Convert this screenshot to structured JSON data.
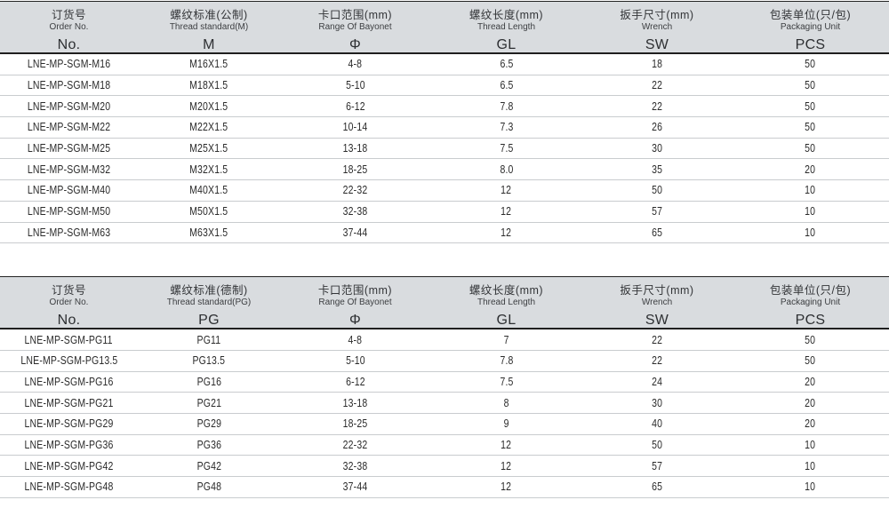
{
  "colors": {
    "header_bg": "#d9dcdf",
    "border_dark": "#1f1f1f",
    "row_line": "#c9cccf",
    "text_dark": "#2b2b2b"
  },
  "tables": [
    {
      "name": "metric-thread-table",
      "columns": [
        {
          "zh": "订货号",
          "en": "Order No.",
          "symbol": "No."
        },
        {
          "zh": "螺纹标准(公制)",
          "en": "Thread standard(M)",
          "symbol": "M"
        },
        {
          "zh": "卡口范围(mm)",
          "en": "Range Of Bayonet",
          "symbol": "Φ"
        },
        {
          "zh": "螺纹长度(mm)",
          "en": "Thread Length",
          "symbol": "GL"
        },
        {
          "zh": "扳手尺寸(mm)",
          "en": "Wrench",
          "symbol": "SW"
        },
        {
          "zh": "包装单位(只/包)",
          "en": "Packaging Unit",
          "symbol": "PCS"
        }
      ],
      "rows": [
        [
          "LNE-MP-SGM-M16",
          "M16X1.5",
          "4-8",
          "6.5",
          "18",
          "50"
        ],
        [
          "LNE-MP-SGM-M18",
          "M18X1.5",
          "5-10",
          "6.5",
          "22",
          "50"
        ],
        [
          "LNE-MP-SGM-M20",
          "M20X1.5",
          "6-12",
          "7.8",
          "22",
          "50"
        ],
        [
          "LNE-MP-SGM-M22",
          "M22X1.5",
          "10-14",
          "7.3",
          "26",
          "50"
        ],
        [
          "LNE-MP-SGM-M25",
          "M25X1.5",
          "13-18",
          "7.5",
          "30",
          "50"
        ],
        [
          "LNE-MP-SGM-M32",
          "M32X1.5",
          "18-25",
          "8.0",
          "35",
          "20"
        ],
        [
          "LNE-MP-SGM-M40",
          "M40X1.5",
          "22-32",
          "12",
          "50",
          "10"
        ],
        [
          "LNE-MP-SGM-M50",
          "M50X1.5",
          "32-38",
          "12",
          "57",
          "10"
        ],
        [
          "LNE-MP-SGM-M63",
          "M63X1.5",
          "37-44",
          "12",
          "65",
          "10"
        ]
      ]
    },
    {
      "name": "pg-thread-table",
      "columns": [
        {
          "zh": "订货号",
          "en": "Order No.",
          "symbol": "No."
        },
        {
          "zh": "螺纹标准(德制)",
          "en": "Thread standard(PG)",
          "symbol": "PG"
        },
        {
          "zh": "卡口范围(mm)",
          "en": "Range Of Bayonet",
          "symbol": "Φ"
        },
        {
          "zh": "螺纹长度(mm)",
          "en": "Thread Length",
          "symbol": "GL"
        },
        {
          "zh": "扳手尺寸(mm)",
          "en": "Wrench",
          "symbol": "SW"
        },
        {
          "zh": "包装单位(只/包)",
          "en": "Packaging Unit",
          "symbol": "PCS"
        }
      ],
      "rows": [
        [
          "LNE-MP-SGM-PG11",
          "PG11",
          "4-8",
          "7",
          "22",
          "50"
        ],
        [
          "LNE-MP-SGM-PG13.5",
          "PG13.5",
          "5-10",
          "7.8",
          "22",
          "50"
        ],
        [
          "LNE-MP-SGM-PG16",
          "PG16",
          "6-12",
          "7.5",
          "24",
          "20"
        ],
        [
          "LNE-MP-SGM-PG21",
          "PG21",
          "13-18",
          "8",
          "30",
          "20"
        ],
        [
          "LNE-MP-SGM-PG29",
          "PG29",
          "18-25",
          "9",
          "40",
          "20"
        ],
        [
          "LNE-MP-SGM-PG36",
          "PG36",
          "22-32",
          "12",
          "50",
          "10"
        ],
        [
          "LNE-MP-SGM-PG42",
          "PG42",
          "32-38",
          "12",
          "57",
          "10"
        ],
        [
          "LNE-MP-SGM-PG48",
          "PG48",
          "37-44",
          "12",
          "65",
          "10"
        ]
      ]
    }
  ]
}
